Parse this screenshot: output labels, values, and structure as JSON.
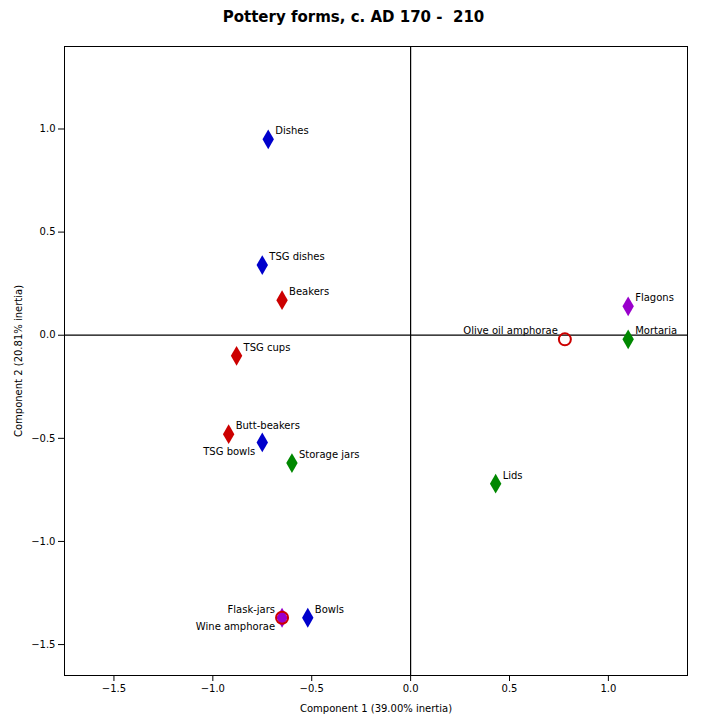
{
  "chart_data": {
    "type": "scatter",
    "title": "Pottery forms, c. AD 170 -  210",
    "xlabel": "Component 1 (39.00% inertia)",
    "ylabel": "Component 2 (20.81% inertia)",
    "xlim": [
      -1.75,
      1.4
    ],
    "ylim": [
      -1.65,
      1.4
    ],
    "xticks": [
      {
        "value": -1.5,
        "label": "−1.5"
      },
      {
        "value": -1.0,
        "label": "−1.0"
      },
      {
        "value": -0.5,
        "label": "−0.5"
      },
      {
        "value": 0.0,
        "label": "0.0"
      },
      {
        "value": 0.5,
        "label": "0.5"
      },
      {
        "value": 1.0,
        "label": "1.0"
      }
    ],
    "yticks": [
      {
        "value": -1.5,
        "label": "−1.5"
      },
      {
        "value": -1.0,
        "label": "−1.0"
      },
      {
        "value": -0.5,
        "label": "−0.5"
      },
      {
        "value": 0.0,
        "label": "0.0"
      },
      {
        "value": 0.5,
        "label": "0.5"
      },
      {
        "value": 1.0,
        "label": "1.0"
      }
    ],
    "grid": false,
    "points": [
      {
        "label": "Dishes",
        "x": -0.72,
        "y": 0.95,
        "color": "#0000cc",
        "marker": "diamond"
      },
      {
        "label": "TSG dishes",
        "x": -0.75,
        "y": 0.34,
        "color": "#0000cc",
        "marker": "diamond"
      },
      {
        "label": "Beakers",
        "x": -0.65,
        "y": 0.17,
        "color": "#cc0000",
        "marker": "diamond"
      },
      {
        "label": "TSG cups",
        "x": -0.88,
        "y": -0.1,
        "color": "#cc0000",
        "marker": "diamond"
      },
      {
        "label": "Butt-beakers",
        "x": -0.92,
        "y": -0.48,
        "color": "#cc0000",
        "marker": "diamond"
      },
      {
        "label": "TSG bowls",
        "x": -0.75,
        "y": -0.52,
        "color": "#0000cc",
        "marker": "diamond"
      },
      {
        "label": "Storage jars",
        "x": -0.6,
        "y": -0.62,
        "color": "#008800",
        "marker": "diamond"
      },
      {
        "label": "Lids",
        "x": 0.43,
        "y": -0.72,
        "color": "#008800",
        "marker": "diamond"
      },
      {
        "label": "Flask-jars",
        "x": -0.65,
        "y": -1.37,
        "color": "#9900cc",
        "marker": "diamond"
      },
      {
        "label": "Wine amphorae",
        "x": -0.65,
        "y": -1.37,
        "color": "#cc0000",
        "marker": "circle-open"
      },
      {
        "label": "Bowls",
        "x": -0.52,
        "y": -1.37,
        "color": "#0000cc",
        "marker": "diamond"
      },
      {
        "label": "Olive oil amphorae",
        "x": 0.78,
        "y": -0.02,
        "color": "#cc0000",
        "marker": "circle-open"
      },
      {
        "label": "Mortaria",
        "x": 1.1,
        "y": -0.02,
        "color": "#008800",
        "marker": "diamond"
      },
      {
        "label": "Flagons",
        "x": 1.1,
        "y": 0.14,
        "color": "#9900cc",
        "marker": "diamond"
      }
    ]
  }
}
